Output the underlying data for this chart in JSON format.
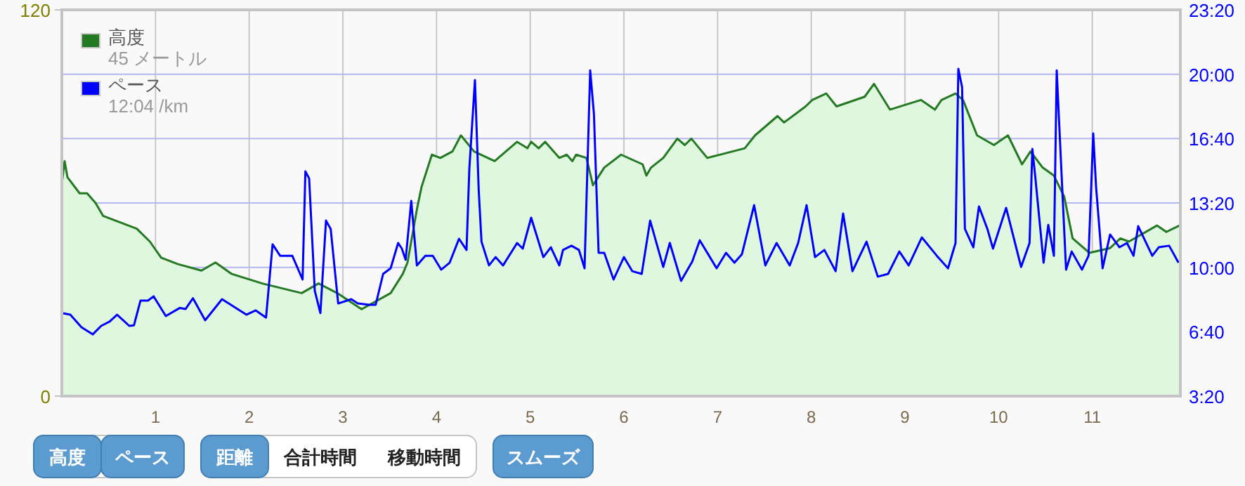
{
  "chart_data": {
    "type": "area",
    "xlim": [
      0,
      11.94
    ],
    "xticks": [
      1,
      2,
      3,
      4,
      5,
      6,
      7,
      8,
      9,
      10,
      11
    ],
    "ylim": [
      0,
      120
    ],
    "yticks": [
      0,
      120
    ],
    "y2lim": [
      3.3333,
      23.3333
    ],
    "y2ticks": [
      {
        "value": 3.3333,
        "label": "3:20"
      },
      {
        "value": 6.6667,
        "label": "6:40"
      },
      {
        "value": 10,
        "label": "10:00"
      },
      {
        "value": 13.3333,
        "label": "13:20"
      },
      {
        "value": 16.6667,
        "label": "16:40"
      },
      {
        "value": 20,
        "label": "20:00"
      },
      {
        "value": 23.3333,
        "label": "23:20"
      }
    ],
    "grid": true,
    "legend": "top left",
    "marker": "none",
    "line_style": "solid",
    "annotations": [
      "45 メートル",
      "12:04 /km",
      "高度",
      "ペース",
      "距離",
      "合計時間",
      "移動時間",
      "スムーズ"
    ],
    "series": [
      {
        "name": "高度",
        "axis": "y",
        "color": "#237a23",
        "x": [
          0.0,
          0.03,
          0.06,
          0.19,
          0.27,
          0.36,
          0.44,
          0.8,
          0.94,
          1.06,
          1.24,
          1.49,
          1.64,
          1.81,
          2.14,
          2.56,
          2.74,
          2.94,
          3.2,
          3.51,
          3.64,
          3.69,
          3.79,
          3.84,
          3.95,
          4.04,
          4.17,
          4.26,
          4.4,
          4.62,
          4.86,
          4.97,
          5.01,
          5.09,
          5.16,
          5.31,
          5.39,
          5.45,
          5.49,
          5.6,
          5.67,
          5.79,
          5.97,
          6.2,
          6.24,
          6.29,
          6.42,
          6.57,
          6.65,
          6.72,
          6.89,
          7.29,
          7.4,
          7.64,
          7.71,
          7.94,
          8.01,
          8.16,
          8.27,
          8.57,
          8.67,
          8.84,
          9.17,
          9.32,
          9.39,
          9.54,
          9.62,
          9.77,
          9.95,
          10.1,
          10.25,
          10.34,
          10.47,
          10.59,
          10.7,
          10.79,
          10.97,
          11.19,
          11.3,
          11.39,
          11.69,
          11.79,
          11.93
        ],
        "values": [
          66,
          73,
          68,
          63,
          63,
          60,
          56,
          52,
          48,
          43,
          41,
          39,
          41.5,
          38,
          35,
          32,
          35,
          32,
          27,
          32,
          38,
          41.5,
          58,
          65,
          75,
          74,
          76,
          81,
          76,
          73,
          79,
          77,
          79,
          77,
          79,
          74,
          75,
          73,
          75,
          74,
          65.5,
          71,
          75,
          72,
          68.5,
          71,
          74,
          80,
          78,
          80,
          74,
          77,
          81,
          87,
          85,
          90,
          92,
          94,
          90,
          93,
          97,
          89,
          92,
          89,
          92,
          94,
          92,
          81,
          78,
          81,
          72,
          76,
          71,
          68.5,
          62,
          49,
          44.5,
          46,
          49,
          48,
          53,
          51,
          53
        ]
      },
      {
        "name": "ペース",
        "type": "line",
        "axis": "y2",
        "color": "#0000ff",
        "x": [
          0.0,
          0.09,
          0.21,
          0.33,
          0.42,
          0.51,
          0.59,
          0.72,
          0.77,
          0.84,
          0.92,
          0.98,
          1.11,
          1.26,
          1.32,
          1.4,
          1.53,
          1.71,
          1.97,
          2.07,
          2.18,
          2.25,
          2.33,
          2.46,
          2.57,
          2.6,
          2.64,
          2.7,
          2.76,
          2.82,
          2.87,
          2.95,
          3.09,
          3.16,
          3.28,
          3.35,
          3.43,
          3.51,
          3.59,
          3.63,
          3.67,
          3.73,
          3.79,
          3.88,
          3.96,
          4.05,
          4.14,
          4.24,
          4.32,
          4.35,
          4.41,
          4.45,
          4.48,
          4.56,
          4.63,
          4.71,
          4.86,
          4.92,
          5.01,
          5.14,
          5.22,
          5.31,
          5.35,
          5.44,
          5.52,
          5.58,
          5.64,
          5.68,
          5.73,
          5.79,
          5.89,
          6.0,
          6.09,
          6.19,
          6.28,
          6.42,
          6.49,
          6.61,
          6.73,
          6.81,
          6.99,
          7.09,
          7.18,
          7.26,
          7.39,
          7.51,
          7.63,
          7.77,
          7.86,
          7.95,
          8.04,
          8.14,
          8.26,
          8.34,
          8.44,
          8.59,
          8.71,
          8.82,
          8.94,
          9.04,
          9.18,
          9.34,
          9.46,
          9.54,
          9.57,
          9.61,
          9.64,
          9.73,
          9.79,
          9.88,
          9.94,
          10.08,
          10.24,
          10.33,
          10.36,
          10.39,
          10.48,
          10.53,
          10.59,
          10.62,
          10.65,
          10.72,
          10.78,
          10.89,
          10.96,
          11.01,
          11.04,
          11.11,
          11.19,
          11.29,
          11.37,
          11.44,
          11.49,
          11.64,
          11.71,
          11.82,
          11.92
        ],
        "values": [
          7.63,
          7.55,
          6.9,
          6.53,
          6.97,
          7.19,
          7.55,
          6.97,
          7.0,
          8.28,
          8.28,
          8.5,
          7.48,
          7.9,
          7.84,
          8.4,
          7.26,
          8.35,
          7.55,
          7.77,
          7.4,
          11.19,
          10.6,
          10.6,
          9.37,
          14.97,
          14.6,
          8.79,
          7.63,
          12.42,
          11.99,
          8.13,
          8.35,
          8.13,
          8.06,
          8.06,
          9.66,
          9.95,
          11.26,
          10.97,
          10.39,
          13.44,
          10.1,
          10.6,
          10.6,
          9.88,
          10.24,
          11.48,
          10.9,
          15.1,
          19.7,
          14.0,
          11.33,
          10.1,
          10.53,
          10.1,
          11.26,
          10.97,
          12.57,
          10.53,
          11.04,
          10.1,
          10.9,
          11.12,
          10.9,
          9.95,
          20.2,
          17.95,
          10.75,
          10.75,
          9.37,
          10.53,
          9.8,
          9.66,
          12.42,
          10.02,
          11.26,
          9.3,
          10.31,
          11.4,
          9.95,
          10.75,
          10.24,
          10.68,
          13.22,
          10.1,
          11.26,
          10.1,
          11.26,
          13.22,
          10.53,
          10.9,
          9.8,
          12.79,
          9.8,
          11.33,
          9.52,
          9.66,
          10.82,
          10.1,
          11.55,
          10.6,
          9.95,
          11.26,
          20.28,
          19.33,
          11.99,
          11.04,
          13.15,
          11.99,
          10.97,
          13.08,
          10.02,
          11.26,
          16.13,
          14.75,
          10.24,
          12.2,
          10.6,
          20.2,
          17.08,
          9.88,
          10.82,
          9.88,
          10.6,
          16.93,
          14.17,
          9.95,
          11.7,
          11.04,
          11.26,
          10.6,
          12.13,
          10.6,
          11.04,
          11.12,
          10.24
        ]
      }
    ]
  }
}
